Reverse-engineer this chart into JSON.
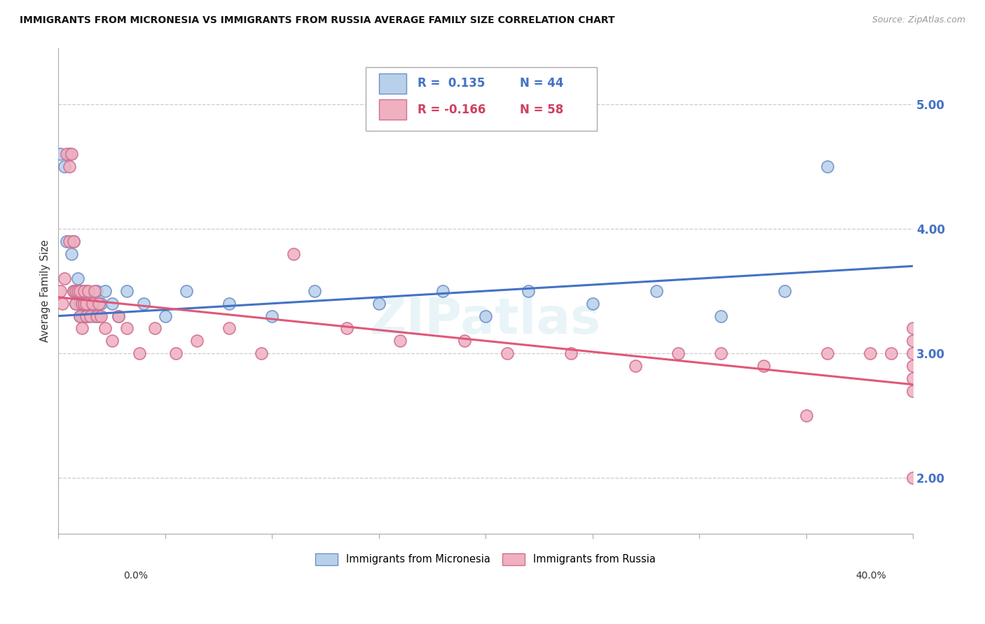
{
  "title": "IMMIGRANTS FROM MICRONESIA VS IMMIGRANTS FROM RUSSIA AVERAGE FAMILY SIZE CORRELATION CHART",
  "source": "Source: ZipAtlas.com",
  "ylabel": "Average Family Size",
  "legend_blue_R": "R =  0.135",
  "legend_blue_N": "N = 44",
  "legend_pink_R": "R = -0.166",
  "legend_pink_N": "N = 58",
  "legend_blue_label": "Immigrants from Micronesia",
  "legend_pink_label": "Immigrants from Russia",
  "blue_face": "#b8d0ea",
  "blue_edge": "#7090c8",
  "pink_face": "#f0b0c0",
  "pink_edge": "#d07090",
  "blue_line": "#4472c4",
  "pink_line": "#e05878",
  "blue_text": "#4472c4",
  "pink_text": "#d04060",
  "watermark": "ZIPatlas",
  "blue_x": [
    0.001,
    0.003,
    0.004,
    0.005,
    0.006,
    0.007,
    0.007,
    0.008,
    0.008,
    0.009,
    0.01,
    0.01,
    0.011,
    0.011,
    0.012,
    0.012,
    0.013,
    0.013,
    0.014,
    0.015,
    0.016,
    0.017,
    0.018,
    0.019,
    0.02,
    0.022,
    0.025,
    0.028,
    0.032,
    0.04,
    0.05,
    0.06,
    0.08,
    0.1,
    0.12,
    0.15,
    0.18,
    0.2,
    0.22,
    0.25,
    0.28,
    0.31,
    0.34,
    0.36
  ],
  "blue_y": [
    4.6,
    4.5,
    3.9,
    4.6,
    3.8,
    3.9,
    3.5,
    3.5,
    3.4,
    3.6,
    3.4,
    3.3,
    3.5,
    3.3,
    3.4,
    3.3,
    3.5,
    3.3,
    3.3,
    3.4,
    3.4,
    3.3,
    3.5,
    3.3,
    3.4,
    3.5,
    3.4,
    3.3,
    3.5,
    3.4,
    3.3,
    3.5,
    3.4,
    3.3,
    3.5,
    3.4,
    3.5,
    3.3,
    3.5,
    3.4,
    3.5,
    3.3,
    3.5,
    4.5
  ],
  "pink_x": [
    0.001,
    0.002,
    0.003,
    0.004,
    0.005,
    0.005,
    0.006,
    0.007,
    0.007,
    0.008,
    0.008,
    0.009,
    0.01,
    0.01,
    0.011,
    0.011,
    0.012,
    0.012,
    0.013,
    0.013,
    0.014,
    0.015,
    0.016,
    0.017,
    0.018,
    0.019,
    0.02,
    0.022,
    0.025,
    0.028,
    0.032,
    0.038,
    0.045,
    0.055,
    0.065,
    0.08,
    0.095,
    0.11,
    0.135,
    0.16,
    0.19,
    0.21,
    0.24,
    0.27,
    0.29,
    0.31,
    0.33,
    0.35,
    0.36,
    0.38,
    0.39,
    0.4,
    0.4,
    0.4,
    0.4,
    0.4,
    0.4,
    0.4
  ],
  "pink_y": [
    3.5,
    3.4,
    3.6,
    4.6,
    4.5,
    3.9,
    4.6,
    3.9,
    3.5,
    3.5,
    3.4,
    3.5,
    3.5,
    3.3,
    3.4,
    3.2,
    3.5,
    3.4,
    3.4,
    3.3,
    3.5,
    3.3,
    3.4,
    3.5,
    3.3,
    3.4,
    3.3,
    3.2,
    3.1,
    3.3,
    3.2,
    3.0,
    3.2,
    3.0,
    3.1,
    3.2,
    3.0,
    3.8,
    3.2,
    3.1,
    3.1,
    3.0,
    3.0,
    2.9,
    3.0,
    3.0,
    2.9,
    2.5,
    3.0,
    3.0,
    3.0,
    3.0,
    3.2,
    3.1,
    2.9,
    2.8,
    2.7,
    2.0
  ],
  "xmin": 0.0,
  "xmax": 0.4,
  "ymin": 1.55,
  "ymax": 5.45,
  "yticks": [
    2.0,
    3.0,
    4.0,
    5.0
  ],
  "ytick_labels": [
    "2.00",
    "3.00",
    "4.00",
    "5.00"
  ],
  "figwidth": 14.06,
  "figheight": 8.92,
  "dpi": 100
}
